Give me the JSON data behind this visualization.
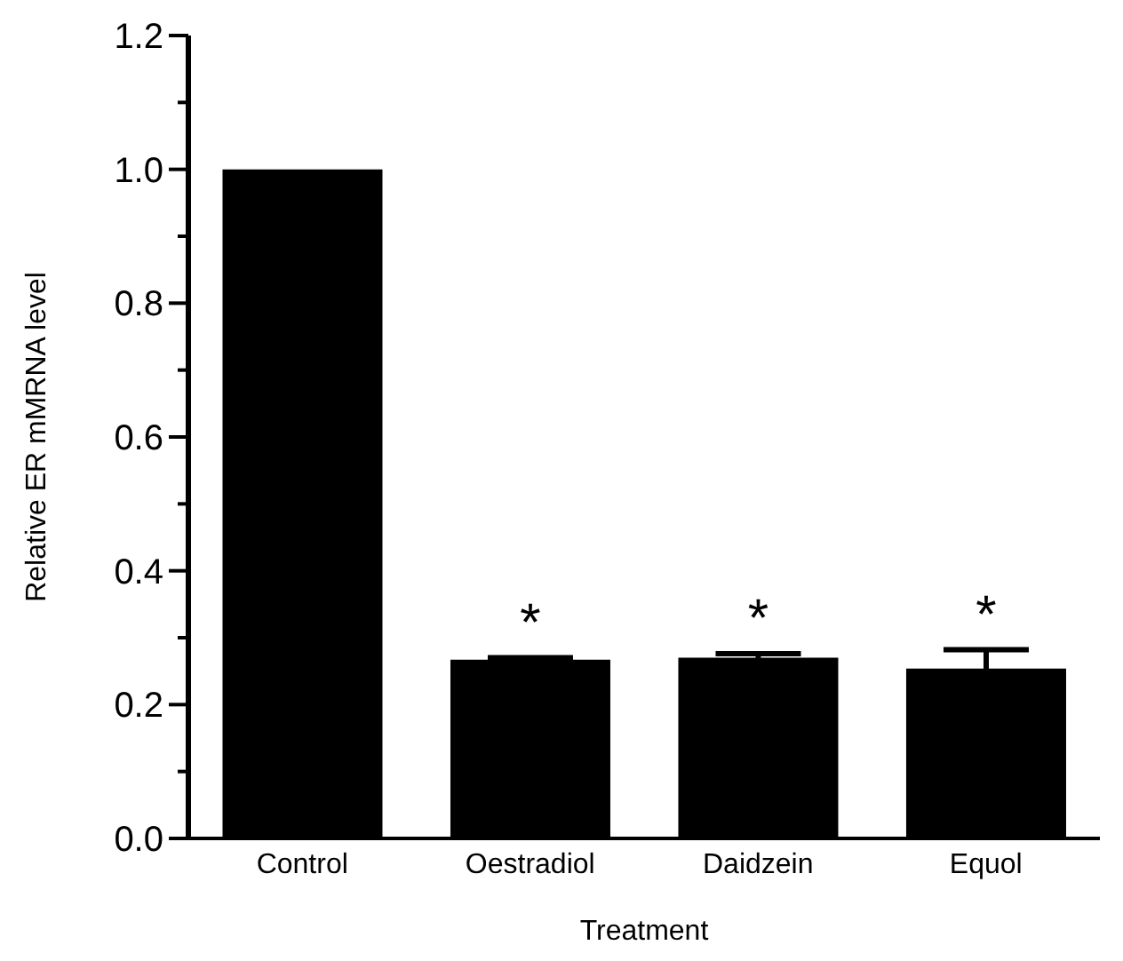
{
  "chart_data": {
    "type": "bar",
    "xlabel": "Treatment",
    "ylabel": "Relative ER mMRNA level",
    "categories": [
      "Control",
      "Oestradiol",
      "Daidzein",
      "Equol"
    ],
    "values": [
      1.0,
      0.267,
      0.27,
      0.254
    ],
    "errors": [
      null,
      0.003,
      0.006,
      0.028
    ],
    "value_labels": [
      null,
      "*",
      "*",
      "*"
    ],
    "color": "#000000",
    "ylim": [
      0,
      1.2
    ],
    "yticks": [
      {
        "value": 0,
        "label": "0.0"
      },
      {
        "value": 0.1,
        "label": null
      },
      {
        "value": 0.2,
        "label": "0.2"
      },
      {
        "value": 0.3,
        "label": null
      },
      {
        "value": 0.4,
        "label": "0.4"
      },
      {
        "value": 0.5,
        "label": null
      },
      {
        "value": 0.6,
        "label": "0.6"
      },
      {
        "value": 0.7,
        "label": null
      },
      {
        "value": 0.8,
        "label": "0.8"
      },
      {
        "value": 0.9,
        "label": null
      },
      {
        "value": 1,
        "label": "1.0"
      },
      {
        "value": 1.1,
        "label": null
      },
      {
        "value": 1.2,
        "label": "1.2"
      }
    ],
    "grid": false,
    "legend": false
  }
}
